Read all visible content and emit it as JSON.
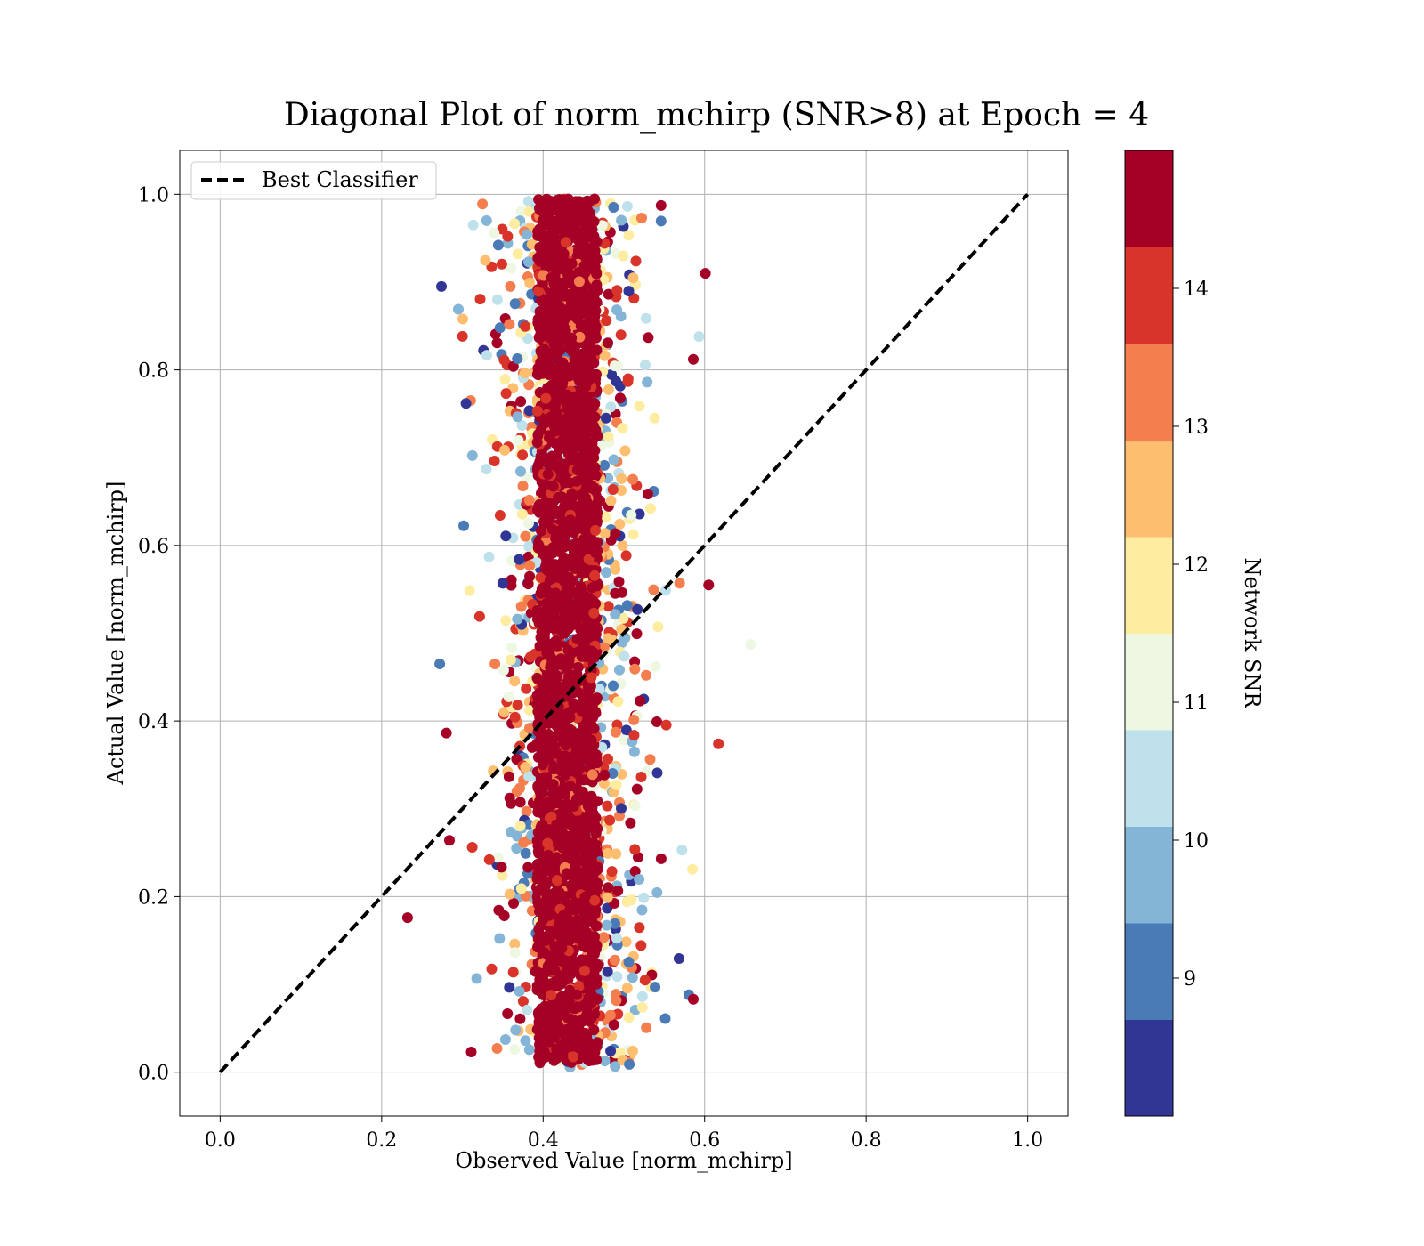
{
  "chart_data": {
    "type": "scatter",
    "title": "Diagonal Plot of norm_mchirp (SNR>8) at Epoch = 4",
    "xlabel": "Observed Value [norm_mchirp]",
    "ylabel": "Actual Value [norm_mchirp]",
    "xlim": [
      -0.05,
      1.05
    ],
    "ylim": [
      -0.05,
      1.05
    ],
    "xticks": [
      "0.0",
      "0.2",
      "0.4",
      "0.6",
      "0.8",
      "1.0"
    ],
    "yticks": [
      "0.0",
      "0.2",
      "0.4",
      "0.6",
      "0.8",
      "1.0"
    ],
    "grid": true,
    "legend": {
      "position": "top-left",
      "entries": [
        "Best Classifier"
      ]
    },
    "reference_line": {
      "name": "Best Classifier",
      "x": [
        0,
        1
      ],
      "y": [
        0,
        1
      ],
      "color": "#000000",
      "style": "dashed"
    },
    "colorbar": {
      "label": "Network SNR",
      "min": 8,
      "max": 15,
      "ticks": [
        "9",
        "10",
        "11",
        "12",
        "13",
        "14"
      ],
      "colors": [
        "#313695",
        "#4a7bb7",
        "#85b5d6",
        "#bfe1ec",
        "#eef7e1",
        "#feeca0",
        "#fdbe70",
        "#f57e4e",
        "#d93429",
        "#a50026"
      ]
    },
    "distribution": {
      "x_center": 0.43,
      "core_half_width": 0.05,
      "y_range": [
        0.0,
        1.0
      ],
      "dominant_snr": 15
    },
    "outliers": [
      {
        "x": 0.274,
        "y": 0.895,
        "snr": 8.2
      },
      {
        "x": 0.232,
        "y": 0.176,
        "snr": 14.3
      },
      {
        "x": 0.617,
        "y": 0.374,
        "snr": 14.2
      },
      {
        "x": 0.657,
        "y": 0.487,
        "snr": 11.0
      },
      {
        "x": 0.601,
        "y": 0.91,
        "snr": 14.9
      },
      {
        "x": 0.586,
        "y": 0.083,
        "snr": 14.9
      },
      {
        "x": 0.605,
        "y": 0.555,
        "snr": 14.9
      },
      {
        "x": 0.586,
        "y": 0.812,
        "snr": 14.9
      },
      {
        "x": 0.593,
        "y": 0.838,
        "snr": 10.3
      },
      {
        "x": 0.585,
        "y": 0.231,
        "snr": 12.1
      },
      {
        "x": 0.311,
        "y": 0.023,
        "snr": 14.3
      },
      {
        "x": 0.295,
        "y": 0.869,
        "snr": 9.8
      },
      {
        "x": 0.272,
        "y": 0.465,
        "snr": 9.2
      },
      {
        "x": 0.284,
        "y": 0.264,
        "snr": 14.5
      },
      {
        "x": 0.33,
        "y": 0.97,
        "snr": 9.7
      },
      {
        "x": 0.522,
        "y": 0.973,
        "snr": 13.5
      },
      {
        "x": 0.572,
        "y": 0.253,
        "snr": 10.6
      },
      {
        "x": 0.569,
        "y": 0.557,
        "snr": 13.2
      }
    ]
  }
}
